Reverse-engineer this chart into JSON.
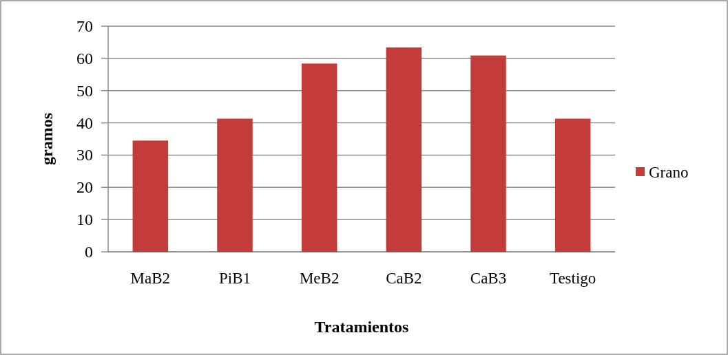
{
  "chart_data": {
    "type": "bar",
    "xlabel": "Tratamientos",
    "ylabel": "gramos",
    "categories": [
      "MaB2",
      "PiB1",
      "MeB2",
      "CaB2",
      "CaB3",
      "Testigo"
    ],
    "series": [
      {
        "name": "Grano",
        "color": "#c43c3a",
        "values": [
          34.5,
          41.3,
          58.4,
          63.4,
          60.9,
          41.3
        ]
      }
    ],
    "ylim": [
      0,
      70
    ],
    "yticks": [
      0,
      10,
      20,
      30,
      40,
      50,
      60,
      70
    ],
    "grid": "y",
    "legend": "right"
  }
}
